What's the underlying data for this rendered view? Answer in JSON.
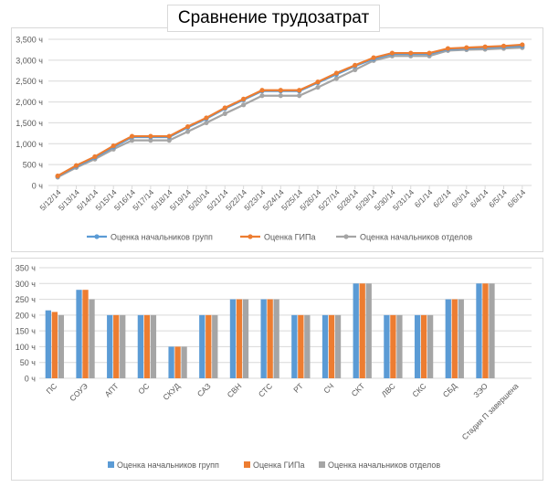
{
  "title": "Сравнение трудозатрат",
  "colors": {
    "blue": "#5B9BD5",
    "orange": "#ED7D31",
    "gray": "#A5A5A5",
    "grid": "#D9D9D9",
    "text": "#595959"
  },
  "chart_data": [
    {
      "type": "line",
      "x": [
        "5/12/14",
        "5/13/14",
        "5/14/14",
        "5/15/14",
        "5/16/14",
        "5/17/14",
        "5/18/14",
        "5/19/14",
        "5/20/14",
        "5/21/14",
        "5/22/14",
        "5/23/14",
        "5/24/14",
        "5/25/14",
        "5/26/14",
        "5/27/14",
        "5/28/14",
        "5/29/14",
        "5/30/14",
        "5/31/14",
        "6/1/14",
        "6/2/14",
        "6/3/14",
        "6/4/14",
        "6/5/14",
        "6/6/14"
      ],
      "yticks": [
        "0 ч",
        "500 ч",
        "1,000 ч",
        "1,500 ч",
        "2,000 ч",
        "2,500 ч",
        "3,000 ч",
        "3,500 ч"
      ],
      "ylim": [
        0,
        3500
      ],
      "legend": "bottom",
      "series": [
        {
          "name": "Оценка начальников групп",
          "color": "#5B9BD5",
          "values": [
            220,
            460,
            670,
            920,
            1160,
            1160,
            1160,
            1390,
            1600,
            1840,
            2050,
            2260,
            2260,
            2260,
            2460,
            2660,
            2860,
            3030,
            3150,
            3150,
            3150,
            3260,
            3280,
            3300,
            3320,
            3340
          ]
        },
        {
          "name": "Оценка ГИПа",
          "color": "#ED7D31",
          "values": [
            230,
            480,
            690,
            950,
            1180,
            1180,
            1180,
            1410,
            1620,
            1860,
            2070,
            2280,
            2280,
            2280,
            2480,
            2690,
            2880,
            3060,
            3170,
            3170,
            3170,
            3280,
            3300,
            3320,
            3340,
            3370
          ]
        },
        {
          "name": "Оценка начальников отделов",
          "color": "#A5A5A5",
          "values": [
            200,
            430,
            630,
            870,
            1080,
            1080,
            1080,
            1290,
            1500,
            1720,
            1930,
            2150,
            2150,
            2150,
            2350,
            2560,
            2770,
            2990,
            3100,
            3100,
            3100,
            3230,
            3250,
            3260,
            3280,
            3300
          ]
        }
      ]
    },
    {
      "type": "bar",
      "categories": [
        "ПС",
        "СОУЭ",
        "АПТ",
        "ОС",
        "СКУД",
        "САЗ",
        "СВН",
        "СТС",
        "РТ",
        "СЧ",
        "СКТ",
        "ЛВС",
        "СКС",
        "СБД",
        "ЗЭО",
        "Стадия П завершена"
      ],
      "yticks": [
        "0 ч",
        "50 ч",
        "100 ч",
        "150 ч",
        "200 ч",
        "250 ч",
        "300 ч",
        "350 ч"
      ],
      "ylim": [
        0,
        350
      ],
      "legend": "bottom",
      "series": [
        {
          "name": "Оценка начальников групп",
          "color": "#5B9BD5",
          "values": [
            215,
            280,
            200,
            200,
            100,
            200,
            250,
            250,
            200,
            200,
            300,
            200,
            200,
            250,
            300,
            0
          ]
        },
        {
          "name": "Оценка ГИПа",
          "color": "#ED7D31",
          "values": [
            210,
            280,
            200,
            200,
            100,
            200,
            250,
            250,
            200,
            200,
            300,
            200,
            200,
            250,
            300,
            0
          ]
        },
        {
          "name": "Оценка начальников отделов",
          "color": "#A5A5A5",
          "values": [
            200,
            250,
            200,
            200,
            100,
            200,
            250,
            250,
            200,
            200,
            300,
            200,
            200,
            250,
            300,
            0
          ]
        }
      ]
    }
  ]
}
